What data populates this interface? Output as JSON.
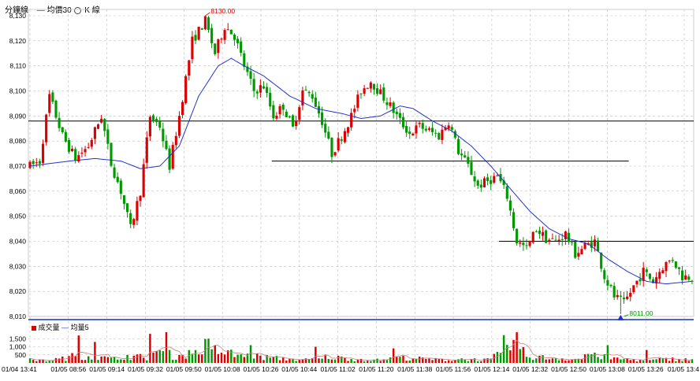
{
  "header": {
    "title": "分鐘線",
    "ma_legend": "均價30",
    "k_legend": "K 線",
    "volume_legend": "成交量",
    "volume_ma_legend": "均量5"
  },
  "annotations": {
    "high_label": "8130.00",
    "low_label": "8011.00"
  },
  "colors": {
    "up": "#dd0000",
    "down": "#009900",
    "ma": "#2233cc",
    "separator": "#1133cc",
    "grid": "#bfbfbf"
  },
  "chart_data": [
    {
      "type": "candlestick",
      "y_ticks": [
        "8,130",
        "8,120",
        "8,110",
        "8,100",
        "8,090",
        "8,080",
        "8,070",
        "8,060",
        "8,050",
        "8,040",
        "8,030",
        "8,020",
        "8,010"
      ],
      "ylim": [
        8010,
        8130
      ],
      "x_ticks": [
        "01/04 13:41",
        "01/05 08:56",
        "01/05 09:14",
        "01/05 09:32",
        "01/05 09:50",
        "01/05 10:08",
        "01/05 10:26",
        "01/05 10:44",
        "01/05 11:02",
        "01/05 11:20",
        "01/05 11:38",
        "01/05 11:56",
        "01/05 12:14",
        "01/05 12:32",
        "01/05 12:50",
        "01/05 13:08",
        "01/05 13:26",
        "01/05 13:4"
      ],
      "price_path": [
        [
          0,
          8070
        ],
        [
          3,
          8072
        ],
        [
          6,
          8098
        ],
        [
          10,
          8082
        ],
        [
          14,
          8073
        ],
        [
          18,
          8078
        ],
        [
          22,
          8090
        ],
        [
          25,
          8071
        ],
        [
          28,
          8060
        ],
        [
          31,
          8045
        ],
        [
          34,
          8060
        ],
        [
          37,
          8090
        ],
        [
          40,
          8086
        ],
        [
          43,
          8070
        ],
        [
          46,
          8090
        ],
        [
          50,
          8120
        ],
        [
          54,
          8128
        ],
        [
          57,
          8115
        ],
        [
          60,
          8126
        ],
        [
          63,
          8122
        ],
        [
          66,
          8110
        ],
        [
          69,
          8100
        ],
        [
          72,
          8102
        ],
        [
          75,
          8090
        ],
        [
          78,
          8094
        ],
        [
          81,
          8085
        ],
        [
          84,
          8100
        ],
        [
          87,
          8098
        ],
        [
          90,
          8088
        ],
        [
          93,
          8075
        ],
        [
          96,
          8082
        ],
        [
          99,
          8090
        ],
        [
          102,
          8100
        ],
        [
          105,
          8104
        ],
        [
          108,
          8099
        ],
        [
          111,
          8094
        ],
        [
          114,
          8088
        ],
        [
          117,
          8083
        ],
        [
          120,
          8086
        ],
        [
          123,
          8084
        ],
        [
          126,
          8082
        ],
        [
          129,
          8088
        ],
        [
          132,
          8076
        ],
        [
          135,
          8070
        ],
        [
          138,
          8062
        ],
        [
          141,
          8064
        ],
        [
          144,
          8066
        ],
        [
          147,
          8058
        ],
        [
          150,
          8040
        ],
        [
          153,
          8037
        ],
        [
          156,
          8045
        ],
        [
          159,
          8041
        ],
        [
          162,
          8040
        ],
        [
          165,
          8043
        ],
        [
          168,
          8035
        ],
        [
          171,
          8038
        ],
        [
          174,
          8040
        ],
        [
          177,
          8026
        ],
        [
          180,
          8018
        ],
        [
          183,
          8015
        ],
        [
          186,
          8022
        ],
        [
          189,
          8028
        ],
        [
          192,
          8024
        ],
        [
          195,
          8030
        ],
        [
          198,
          8033
        ],
        [
          201,
          8026
        ],
        [
          204,
          8026
        ]
      ],
      "ma30_path": [
        [
          0,
          8070
        ],
        [
          6,
          8071
        ],
        [
          12,
          8072
        ],
        [
          20,
          8073
        ],
        [
          28,
          8072
        ],
        [
          34,
          8069
        ],
        [
          40,
          8070
        ],
        [
          46,
          8078
        ],
        [
          52,
          8098
        ],
        [
          58,
          8110
        ],
        [
          62,
          8113
        ],
        [
          66,
          8110
        ],
        [
          72,
          8106
        ],
        [
          80,
          8098
        ],
        [
          88,
          8093
        ],
        [
          96,
          8091
        ],
        [
          102,
          8089
        ],
        [
          108,
          8090
        ],
        [
          114,
          8094
        ],
        [
          118,
          8093
        ],
        [
          124,
          8088
        ],
        [
          130,
          8084
        ],
        [
          136,
          8078
        ],
        [
          142,
          8070
        ],
        [
          148,
          8061
        ],
        [
          154,
          8052
        ],
        [
          160,
          8045
        ],
        [
          166,
          8041
        ],
        [
          172,
          8039
        ],
        [
          178,
          8033
        ],
        [
          184,
          8028
        ],
        [
          190,
          8024
        ],
        [
          196,
          8023
        ],
        [
          204,
          8024
        ]
      ],
      "high": {
        "index": 54,
        "value": 8130.0
      },
      "low": {
        "index": 182,
        "value": 8011.0
      },
      "horizontal_lines": [
        {
          "value": 8088,
          "from_index": 0,
          "to_index": 204
        },
        {
          "value": 8072,
          "from_index": 75,
          "to_index": 184
        },
        {
          "value": 8040,
          "from_index": 145,
          "to_index": 204
        }
      ]
    },
    {
      "type": "bar",
      "y_ticks": [
        "1,500",
        "1,000",
        "500"
      ],
      "ylim": [
        0,
        2000
      ],
      "levels": [
        230,
        180,
        280,
        350,
        600,
        520,
        420,
        380,
        300,
        520,
        460,
        380,
        780,
        650,
        520,
        700,
        860,
        1250,
        950,
        720,
        610,
        520,
        480,
        430,
        360,
        320,
        280,
        240,
        300,
        450,
        390,
        340,
        280,
        250,
        220,
        310,
        400,
        380,
        320,
        280,
        250,
        230,
        300,
        280,
        260,
        240,
        550,
        1400,
        800,
        500,
        420,
        380,
        350,
        320,
        300,
        700,
        520,
        380,
        300,
        260,
        220,
        200,
        260,
        300,
        280,
        250
      ],
      "spikes": [
        {
          "index": 15,
          "value": 1700
        },
        {
          "index": 20,
          "value": 1300
        },
        {
          "index": 37,
          "value": 1800
        },
        {
          "index": 42,
          "value": 1900
        },
        {
          "index": 55,
          "value": 1500
        },
        {
          "index": 68,
          "value": 1100
        },
        {
          "index": 88,
          "value": 1000
        },
        {
          "index": 112,
          "value": 900
        },
        {
          "index": 150,
          "value": 1900
        },
        {
          "index": 178,
          "value": 1100
        },
        {
          "index": 190,
          "value": 800
        }
      ]
    }
  ]
}
